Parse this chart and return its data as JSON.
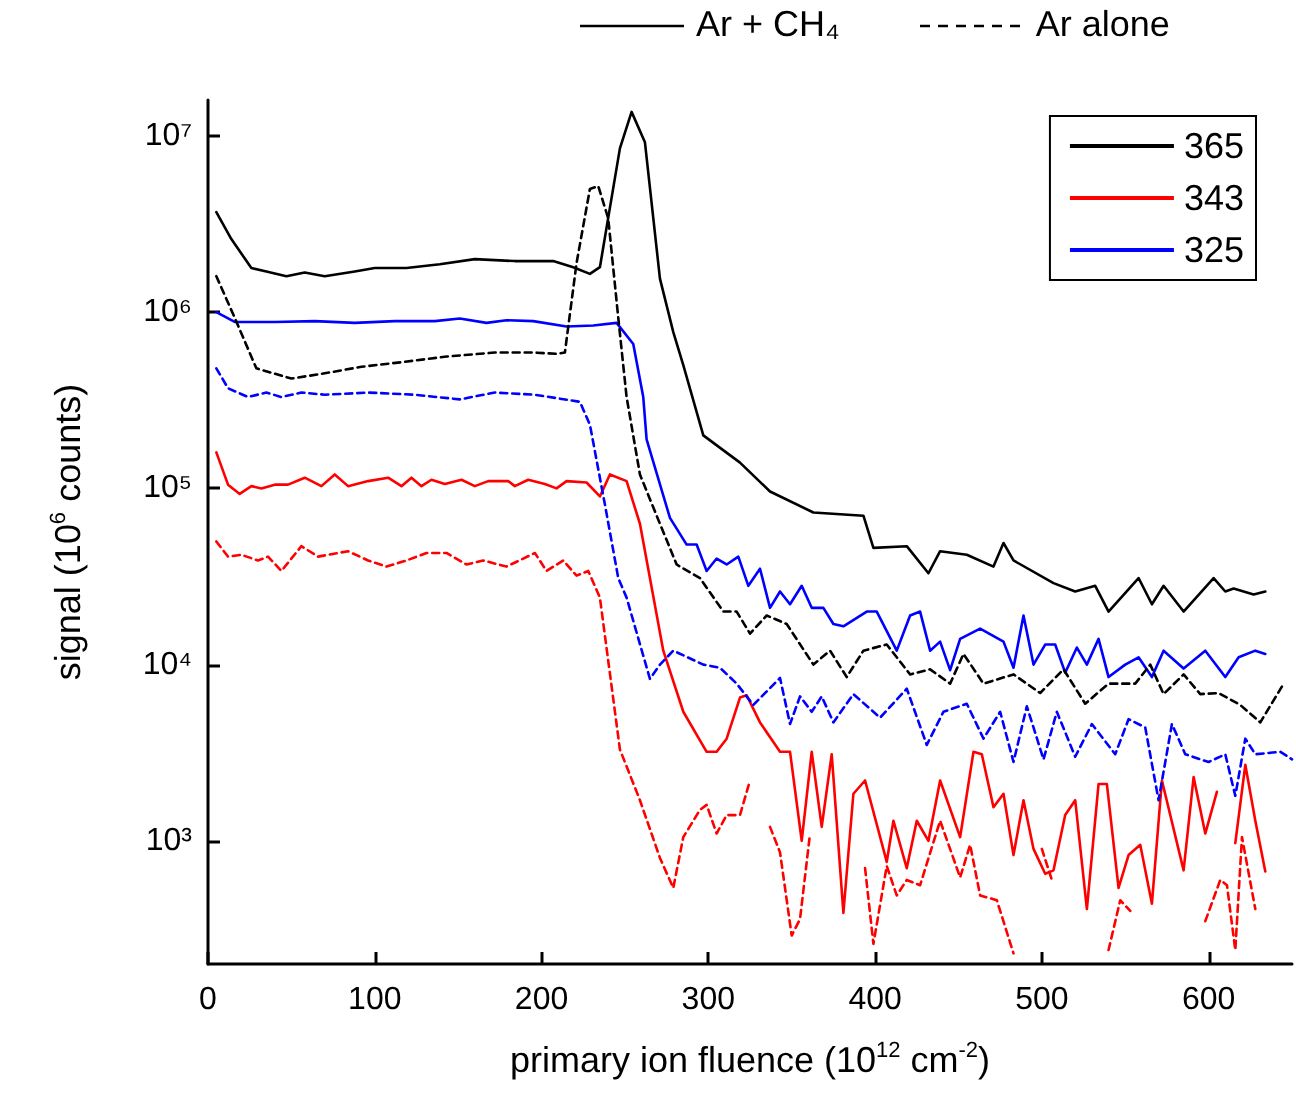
{
  "chart_data": {
    "type": "line",
    "xlabel": "primary ion fluence (10$^{12}$ cm$^{-2}$)",
    "ylabel": "signal (10$^{6}$ counts)",
    "annotations": [
      "Ar + CH₄",
      "Ar alone"
    ],
    "xlim": [
      0,
      650
    ],
    "xticks": [
      0,
      100,
      200,
      300,
      400,
      500,
      600
    ],
    "ylim": [
      200,
      16000000
    ],
    "yticks": [
      {
        "value": 1000,
        "label": "10³"
      },
      {
        "value": 10000,
        "label": "10⁴"
      },
      {
        "value": 100000,
        "label": "10⁵"
      },
      {
        "value": 1000000,
        "label": "10⁶"
      },
      {
        "value": 10000000,
        "label": "10⁷"
      }
    ],
    "log": "y",
    "grid": false,
    "legend": "top right",
    "marker": "none",
    "series": [
      {
        "name": "365",
        "color": "#000000",
        "line_style": "solid",
        "x": [
          5,
          14,
          26,
          35,
          47,
          58,
          70,
          88,
          100,
          119,
          139,
          160,
          184,
          207,
          219,
          229,
          235,
          247,
          254,
          262,
          271,
          279,
          285,
          297,
          319,
          337,
          363,
          393,
          399,
          419,
          432,
          439,
          455,
          471,
          477,
          483,
          507,
          520,
          532,
          540,
          558,
          566,
          573,
          585,
          603,
          610,
          615,
          627,
          634
        ],
        "values": [
          3700000,
          2600000,
          1780000,
          1700000,
          1600000,
          1680000,
          1600000,
          1700000,
          1780000,
          1780000,
          1870000,
          2000000,
          1950000,
          1950000,
          1800000,
          1650000,
          1800000,
          8500000,
          13700000,
          9200000,
          1550000,
          770000,
          500000,
          200000,
          140000,
          96000,
          73000,
          70000,
          46000,
          47000,
          33000,
          44000,
          42000,
          36000,
          49000,
          39000,
          29000,
          26000,
          28000,
          20000,
          31000,
          22000,
          28000,
          20000,
          31000,
          26000,
          27000,
          25000,
          26000
        ]
      },
      {
        "name": "343",
        "color": "#ff0000",
        "line_style": "solid",
        "x": [
          5,
          12,
          19,
          26,
          32,
          40,
          48,
          58,
          68,
          76,
          84,
          96,
          108,
          116,
          122,
          128,
          134,
          142,
          152,
          160,
          168,
          180,
          184,
          192,
          202,
          209,
          215,
          227,
          235,
          241,
          251,
          259,
          273,
          285,
          299,
          305,
          311,
          319,
          323,
          331,
          343,
          349,
          356,
          362,
          368,
          374,
          381,
          387,
          394,
          407,
          411,
          419,
          425,
          432,
          439,
          451,
          459,
          464,
          471,
          477,
          483,
          489,
          495,
          502,
          507,
          514,
          520,
          527,
          534,
          539,
          546,
          552,
          559,
          566,
          572,
          585,
          591,
          598,
          605,
          611,
          616,
          622,
          628,
          634
        ],
        "values": [
          160000,
          105000,
          93000,
          103000,
          100000,
          105000,
          105000,
          115000,
          103000,
          120000,
          103000,
          110000,
          115000,
          103000,
          115000,
          103000,
          112000,
          106000,
          112000,
          103000,
          110000,
          110000,
          103000,
          112000,
          106000,
          100000,
          110000,
          108000,
          90000,
          120000,
          110000,
          63000,
          12000,
          5400,
          3200,
          3200,
          3800,
          6500,
          6700,
          4700,
          3200,
          3200,
          1000,
          3200,
          1200,
          3100,
          390,
          1850,
          2200,
          760,
          1300,
          700,
          1300,
          1000,
          2200,
          1050,
          3200,
          3100,
          1550,
          1850,
          830,
          1700,
          900,
          650,
          680,
          1400,
          1700,
          410,
          2100,
          2100,
          540,
          830,
          950,
          440,
          2200,
          680,
          2300,
          1100,
          1900,
          null,
          970,
          2700,
          1300,
          670
        ]
      },
      {
        "name": "325",
        "color": "#0000ff",
        "line_style": "solid",
        "x": [
          5,
          16,
          40,
          64,
          88,
          112,
          136,
          151,
          167,
          179,
          195,
          215,
          231,
          245,
          255,
          261,
          263,
          277,
          287,
          293,
          299,
          305,
          311,
          318,
          324,
          331,
          337,
          343,
          349,
          356,
          362,
          369,
          375,
          381,
          395,
          401,
          413,
          421,
          427,
          433,
          439,
          445,
          451,
          463,
          477,
          483,
          489,
          495,
          502,
          508,
          514,
          521,
          527,
          534,
          540,
          550,
          558,
          566,
          573,
          585,
          598,
          610,
          618,
          628,
          634
        ],
        "values": [
          1000000,
          880000,
          880000,
          890000,
          870000,
          890000,
          890000,
          920000,
          870000,
          900000,
          890000,
          830000,
          840000,
          870000,
          660000,
          330000,
          190000,
          68000,
          48000,
          48000,
          34000,
          40000,
          37000,
          41000,
          28000,
          35000,
          21000,
          26000,
          22000,
          28000,
          21000,
          21000,
          17000,
          16500,
          20000,
          20000,
          12000,
          19000,
          20000,
          12000,
          13500,
          9300,
          14000,
          16000,
          13500,
          9600,
          19000,
          10000,
          13000,
          13000,
          9000,
          12500,
          10000,
          14000,
          8500,
          10000,
          11000,
          8500,
          12000,
          9500,
          12000,
          8500,
          11000,
          12000,
          11500
        ]
      },
      {
        "color": "#000000",
        "line_style": "dashed",
        "x": [
          5,
          16,
          29,
          50,
          70,
          92,
          116,
          143,
          172,
          196,
          209,
          214,
          221,
          229,
          234,
          240,
          246,
          251,
          259,
          271,
          281,
          295,
          309,
          317,
          325,
          335,
          347,
          363,
          373,
          383,
          393,
          407,
          421,
          433,
          445,
          453,
          465,
          483,
          499,
          513,
          526,
          540,
          556,
          565,
          573,
          585,
          595,
          606,
          619,
          631,
          645
        ],
        "values": [
          1600000,
          930000,
          480000,
          420000,
          450000,
          490000,
          520000,
          560000,
          590000,
          590000,
          580000,
          590000,
          1900000,
          5000000,
          5200000,
          3400000,
          930000,
          330000,
          120000,
          63000,
          37000,
          31000,
          20000,
          20000,
          15000,
          19000,
          17000,
          10000,
          12000,
          8500,
          12000,
          13000,
          8800,
          9400,
          7800,
          11500,
          7800,
          8800,
          6900,
          9400,
          6000,
          7800,
          7800,
          10000,
          6800,
          8800,
          6800,
          6900,
          5900,
          4700,
          7800
        ]
      },
      {
        "color": "#ff0000",
        "line_style": "dashed",
        "x": [
          5,
          12,
          20,
          30,
          36,
          44,
          56,
          66,
          84,
          96,
          107,
          119,
          131,
          143,
          155,
          165,
          179,
          196,
          203,
          213,
          221,
          228,
          235,
          247,
          259,
          271,
          279,
          285,
          295,
          299,
          305,
          311,
          319,
          325,
          331,
          337,
          343,
          350,
          355,
          361,
          380,
          394,
          399,
          407,
          413,
          419,
          427,
          439,
          451,
          457,
          463,
          473,
          483,
          490,
          500,
          506,
          520,
          540,
          547,
          553,
          575,
          598,
          607,
          611,
          616,
          620,
          628
        ],
        "values": [
          50000,
          41000,
          42000,
          39000,
          41000,
          34000,
          47000,
          41000,
          44000,
          39000,
          36000,
          39000,
          43000,
          43000,
          37000,
          39000,
          36000,
          43000,
          34000,
          39000,
          32000,
          34000,
          24000,
          3300,
          1700,
          800,
          540,
          1050,
          1500,
          1600,
          1100,
          1400,
          1400,
          2200,
          null,
          1200,
          860,
          290,
          360,
          1100,
          null,
          700,
          260,
          720,
          490,
          600,
          560,
          1300,
          620,
          950,
          490,
          460,
          230,
          null,
          900,
          600,
          null,
          240,
          460,
          400,
          null,
          350,
          600,
          560,
          240,
          1050,
          410
        ]
      },
      {
        "color": "#0000ff",
        "line_style": "dashed",
        "x": [
          5,
          12,
          24,
          35,
          44,
          56,
          70,
          96,
          124,
          151,
          172,
          196,
          223,
          229,
          238,
          246,
          251,
          265,
          271,
          279,
          297,
          307,
          317,
          327,
          343,
          349,
          355,
          362,
          368,
          375,
          387,
          403,
          419,
          431,
          441,
          455,
          465,
          475,
          483,
          491,
          501,
          509,
          520,
          530,
          544,
          552,
          562,
          570,
          578,
          586,
          600,
          610,
          616,
          622,
          628,
          643,
          650
        ],
        "values": [
          480000,
          370000,
          330000,
          350000,
          330000,
          350000,
          340000,
          350000,
          340000,
          320000,
          350000,
          340000,
          310000,
          230000,
          81000,
          31000,
          24000,
          8300,
          10000,
          12000,
          10000,
          9600,
          7800,
          5900,
          8400,
          4600,
          6600,
          5400,
          6600,
          4700,
          6800,
          5000,
          7300,
          3500,
          5400,
          6000,
          3800,
          5400,
          2800,
          5800,
          2900,
          5400,
          3000,
          4600,
          3100,
          4900,
          4400,
          1700,
          4600,
          3100,
          2800,
          3100,
          1800,
          3800,
          3100,
          3200,
          2900
        ]
      }
    ]
  }
}
